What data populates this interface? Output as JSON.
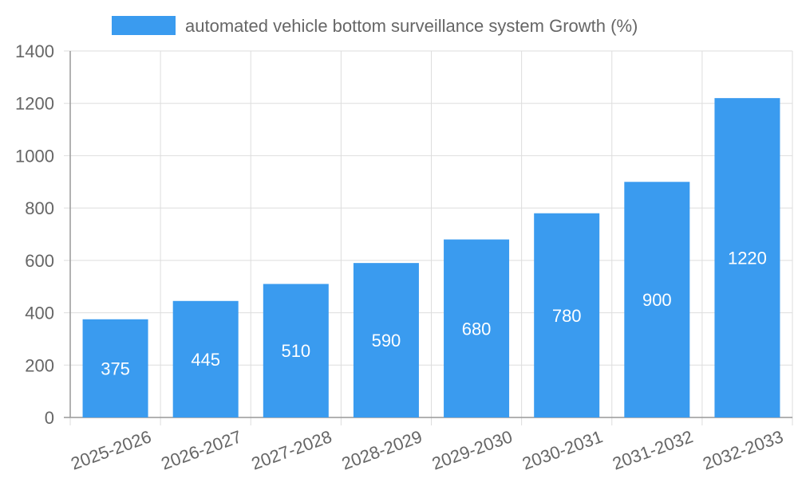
{
  "chart_data": {
    "type": "bar",
    "title": "",
    "xlabel": "",
    "ylabel": "",
    "legend_position": "top",
    "categories": [
      "2025-2026",
      "2026-2027",
      "2027-2028",
      "2028-2029",
      "2029-2030",
      "2030-2031",
      "2031-2032",
      "2032-2033"
    ],
    "series": [
      {
        "name": "automated vehicle bottom surveillance system Growth (%)",
        "values": [
          375,
          445,
          510,
          590,
          680,
          780,
          900,
          1220
        ],
        "color": "#3a9bef"
      }
    ],
    "ylim": [
      0,
      1400
    ],
    "yticks": [
      0,
      200,
      400,
      600,
      800,
      1000,
      1200,
      1400
    ],
    "grid": true,
    "data_labels": true
  },
  "colors": {
    "grid": "#dddddd",
    "axis": "#999999",
    "text": "#666666",
    "label": "#ffffff"
  }
}
